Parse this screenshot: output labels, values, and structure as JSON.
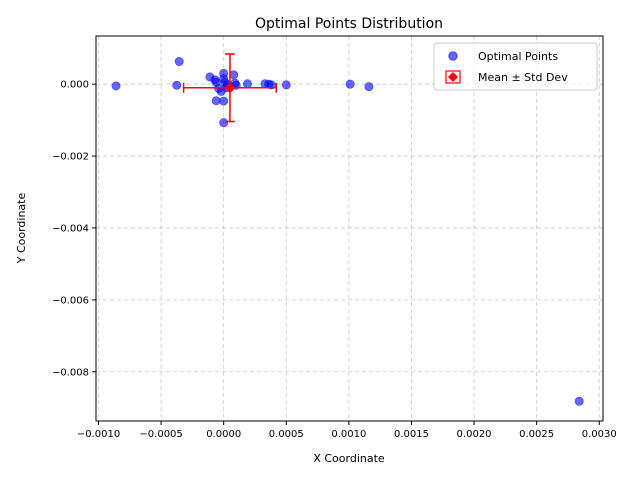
{
  "chart_data": {
    "type": "scatter",
    "title": "Optimal Points Distribution",
    "xlabel": "X Coordinate",
    "ylabel": "Y Coordinate",
    "xlim": [
      -0.00102,
      0.00303
    ],
    "ylim": [
      -0.00937,
      0.00134
    ],
    "x_ticks": [
      -0.001,
      -0.0005,
      0.0,
      0.0005,
      0.001,
      0.0015,
      0.002,
      0.0025,
      0.003
    ],
    "x_tick_labels": [
      "−0.0010",
      "−0.0005",
      "0.0000",
      "0.0005",
      "0.0010",
      "0.0015",
      "0.0020",
      "0.0025",
      "0.0030"
    ],
    "y_ticks": [
      0.0,
      -0.002,
      -0.004,
      -0.006,
      -0.008
    ],
    "y_tick_labels": [
      "0.000",
      "−0.002",
      "−0.004",
      "−0.006",
      "−0.008"
    ],
    "grid": true,
    "legend_position": "top-right",
    "series": [
      {
        "name": "Optimal Points",
        "color": "#0000ff",
        "opacity": 0.6,
        "points": [
          [
            -0.00086,
            -5e-05
          ],
          [
            -0.000355,
            0.00063
          ],
          [
            -0.000375,
            -3e-05
          ],
          [
            -0.00011,
            0.0002
          ],
          [
            -7e-05,
            0.00012
          ],
          [
            -6e-05,
            5e-05
          ],
          [
            -4e-05,
            -0.00012
          ],
          [
            -6e-05,
            -0.00046
          ],
          [
            0.0,
            -0.00047
          ],
          [
            0.0,
            -0.00107
          ],
          [
            0.0,
            0.0003
          ],
          [
            0.0,
            0.00015
          ],
          [
            1e-05,
            5e-05
          ],
          [
            2e-05,
            -0.0001
          ],
          [
            -2e-05,
            -0.0002
          ],
          [
            3e-05,
            -2e-05
          ],
          [
            5e-05,
            -8e-05
          ],
          [
            8e-05,
            0.00026
          ],
          [
            9e-05,
            3e-05
          ],
          [
            0.0001,
            -3e-05
          ],
          [
            0.00019,
            1e-05
          ],
          [
            0.00033,
            1e-05
          ],
          [
            0.00036,
            0.0
          ],
          [
            0.00038,
            -2e-05
          ],
          [
            0.0005,
            -2e-05
          ],
          [
            0.00101,
            0.0
          ],
          [
            0.00116,
            -7e-05
          ],
          [
            0.00284,
            -0.00882
          ]
        ]
      },
      {
        "name": "Mean ± Std Dev",
        "color": "#ff0000",
        "mean": [
          5e-05,
          -0.0001
        ],
        "std": [
          0.00037,
          0.00094
        ]
      }
    ]
  }
}
